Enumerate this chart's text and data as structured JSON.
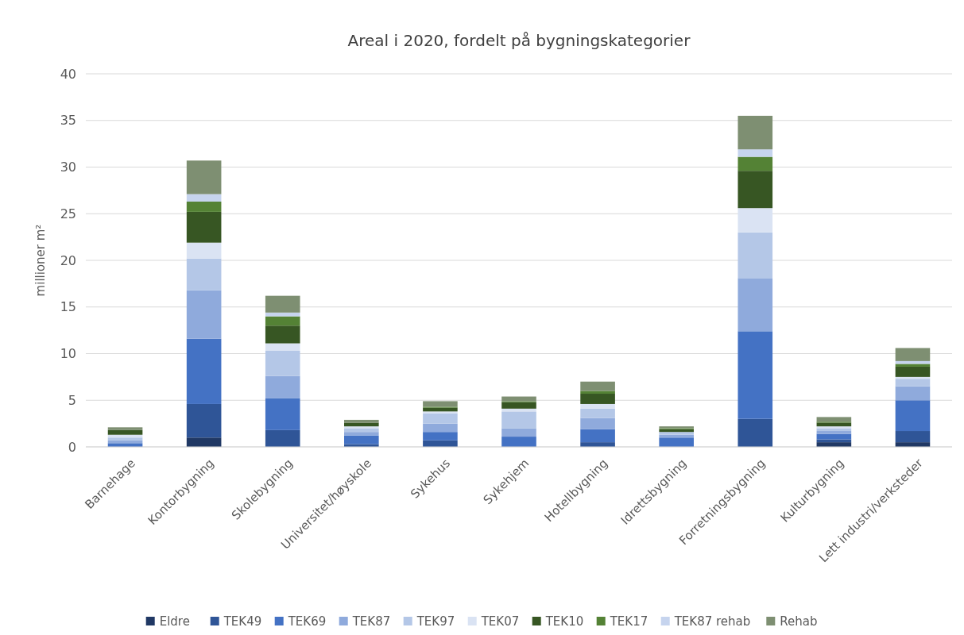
{
  "chart_data": {
    "type": "bar",
    "stacked": true,
    "title": "Areal i 2020, fordelt på bygningskategorier",
    "ylabel": "millioner m²",
    "categories": [
      "Barnehage",
      "Kontorbygning",
      "Skolebygning",
      "Universitet/høyskole",
      "Sykehus",
      "Sykehjem",
      "Hotellbygning",
      "Idrettsbygning",
      "Forretningsbygning",
      "Kulturbygning",
      "Lett industri/verksteder"
    ],
    "series": [
      {
        "name": "Eldre",
        "color": "#203864",
        "values": [
          0,
          1.0,
          0,
          0,
          0,
          0,
          0,
          0,
          0,
          0.5,
          0.5
        ]
      },
      {
        "name": "TEK49",
        "color": "#2f5597",
        "values": [
          null,
          3.6,
          1.8,
          0.3,
          0.7,
          0,
          0.5,
          null,
          3.0,
          0.3,
          1.2
        ]
      },
      {
        "name": "TEK69",
        "color": "#4472c4",
        "values": [
          0.4,
          7.0,
          3.4,
          0.9,
          0.9,
          1.1,
          1.4,
          1.0,
          9.4,
          0.6,
          3.3
        ]
      },
      {
        "name": "TEK87",
        "color": "#8faadc",
        "values": [
          0.3,
          5.2,
          2.4,
          0.4,
          0.9,
          0.9,
          1.2,
          0.3,
          5.7,
          0.3,
          1.5
        ]
      },
      {
        "name": "TEK97",
        "color": "#b4c7e7",
        "values": [
          0.3,
          3.4,
          2.7,
          0.4,
          1.1,
          1.8,
          1.0,
          0.3,
          4.9,
          0.3,
          0.8
        ]
      },
      {
        "name": "TEK07",
        "color": "#dae3f3",
        "values": [
          0.3,
          1.7,
          0.8,
          0.2,
          0.2,
          0.3,
          0.5,
          null,
          2.6,
          0.2,
          0.2
        ]
      },
      {
        "name": "TEK10",
        "color": "#375623",
        "values": [
          0.5,
          3.3,
          1.9,
          0.4,
          0.4,
          0.7,
          1.1,
          0.3,
          4.0,
          0.4,
          1.1
        ]
      },
      {
        "name": "TEK17",
        "color": "#548235",
        "values": [
          0,
          1.1,
          1.0,
          0,
          0.1,
          0.1,
          0.3,
          0.1,
          1.5,
          0.1,
          0.3
        ]
      },
      {
        "name": "TEK87 rehab",
        "color": "#c6d4ee",
        "values": [
          0,
          0.8,
          0.4,
          0,
          0,
          0,
          0,
          0,
          0.8,
          0,
          0.3
        ]
      },
      {
        "name": "Rehab",
        "color": "#7e8f72",
        "values": [
          0.3,
          3.6,
          1.8,
          0.3,
          0.6,
          0.5,
          1.0,
          0.2,
          3.6,
          0.5,
          1.4
        ]
      }
    ],
    "ylim": [
      0,
      40
    ],
    "yticks": [
      0,
      5,
      10,
      15,
      20,
      25,
      30,
      35,
      40
    ],
    "grid": "y",
    "legend": "bottom"
  }
}
